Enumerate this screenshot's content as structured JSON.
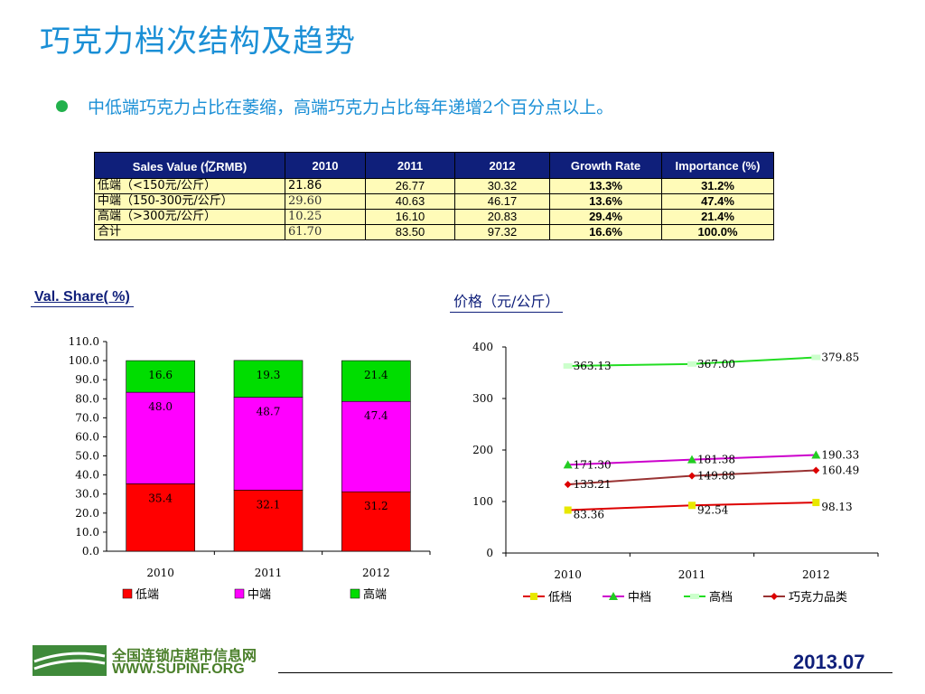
{
  "title": "巧克力档次结构及趋势",
  "bullet": "中低端巧克力占比在萎缩，高端巧克力占比每年递增2个百分点以上。",
  "table": {
    "headers": [
      "Sales Value (亿RMB)",
      "2010",
      "2011",
      "2012",
      "Growth Rate",
      "Importance (%)"
    ],
    "rows": [
      [
        "低端（<150元/公斤）",
        "21.86",
        "26.77",
        "30.32",
        "13.3%",
        "31.2%"
      ],
      [
        "中端（150-300元/公斤）",
        "29.60",
        "40.63",
        "46.17",
        "13.6%",
        "47.4%"
      ],
      [
        "高端（>300元/公斤）",
        "10.25",
        "16.10",
        "20.83",
        "29.4%",
        "21.4%"
      ],
      [
        "合计",
        "61.70",
        "83.50",
        "97.32",
        "16.6%",
        "100.0%"
      ]
    ]
  },
  "share_heading": "Val. Share( %)",
  "price_heading": "价格（元/公斤）",
  "footer": {
    "logo_cn": "全国连锁店超市信息网",
    "logo_en": "WWW.SUPINF.ORG",
    "date": "2013.07"
  },
  "chart_data": [
    {
      "type": "bar",
      "stacked": true,
      "categories": [
        "2010",
        "2011",
        "2012"
      ],
      "series": [
        {
          "name": "低端",
          "values": [
            35.4,
            32.1,
            31.2
          ],
          "color": "#ff0000"
        },
        {
          "name": "中端",
          "values": [
            48.0,
            48.7,
            47.4
          ],
          "color": "#ff00ff"
        },
        {
          "name": "高端",
          "values": [
            16.6,
            19.3,
            21.4
          ],
          "color": "#00dd00"
        }
      ],
      "ylim": [
        0,
        110
      ],
      "yticks": [
        "0.0",
        "10.0",
        "20.0",
        "30.0",
        "40.0",
        "50.0",
        "60.0",
        "70.0",
        "80.0",
        "90.0",
        "100.0",
        "110.0"
      ],
      "legend": "bottom"
    },
    {
      "type": "line",
      "categories": [
        "2010",
        "2011",
        "2012"
      ],
      "series": [
        {
          "name": "低档",
          "values": [
            83.36,
            92.54,
            98.13
          ],
          "labels": [
            "83.36",
            "92.54",
            "98.13"
          ],
          "color": "#e8e800",
          "line": "#dd0000",
          "marker": "square"
        },
        {
          "name": "中档",
          "values": [
            171.3,
            181.38,
            190.33
          ],
          "labels": [
            "171.30",
            "181.38",
            "190.33"
          ],
          "color": "#22cc22",
          "line": "#cc00cc",
          "marker": "triangle"
        },
        {
          "name": "高档",
          "values": [
            363.13,
            367.0,
            379.85
          ],
          "labels": [
            "363.13",
            "367.00",
            "379.85"
          ],
          "color": "#ccffcc",
          "line": "#22dd22",
          "marker": "dash"
        },
        {
          "name": "巧克力品类",
          "values": [
            133.21,
            149.88,
            160.49
          ],
          "labels": [
            "133.21",
            "149.88",
            "160.49"
          ],
          "color": "#dd0000",
          "line": "#993333",
          "marker": "diamond"
        }
      ],
      "ylim": [
        0,
        400
      ],
      "yticks": [
        "0",
        "100",
        "200",
        "300",
        "400"
      ],
      "legend": "bottom"
    }
  ]
}
